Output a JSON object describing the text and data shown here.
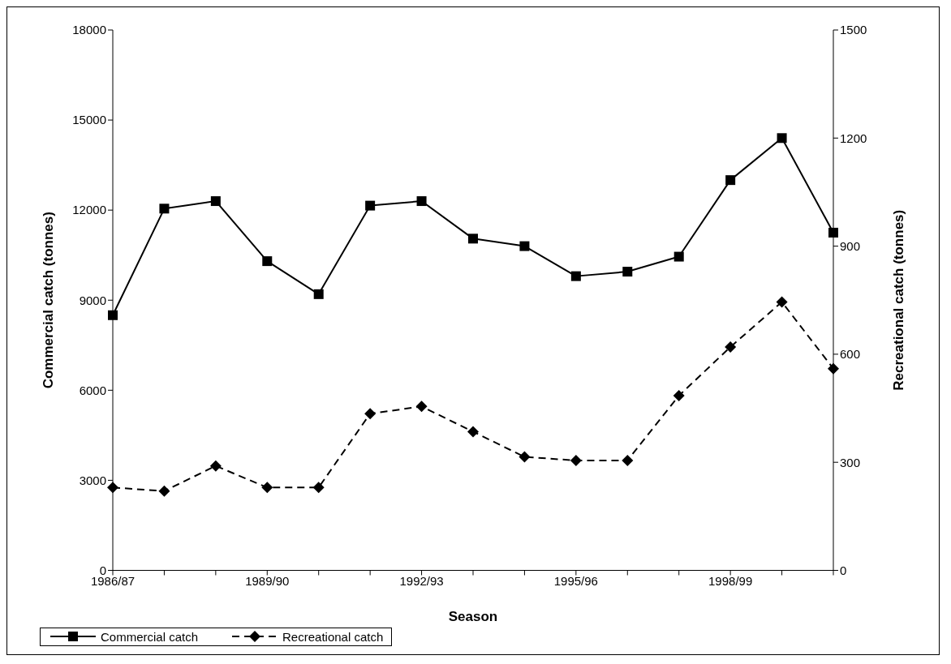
{
  "chart_data": {
    "type": "line",
    "xlabel": "Season",
    "ylabel": "Commercial catch (tonnes)",
    "y2label": "Recreational catch (tonnes)",
    "categories": [
      "1986/87",
      null,
      null,
      "1989/90",
      null,
      null,
      "1992/93",
      null,
      null,
      "1995/96",
      null,
      null,
      "1998/99",
      null,
      null
    ],
    "series": [
      {
        "name": "Commercial catch",
        "color": "#000000",
        "marker": "square",
        "line_style": "solid",
        "values": [
          8500,
          12050,
          12300,
          10300,
          9200,
          12150,
          12300,
          11050,
          10800,
          9800,
          9950,
          10450,
          13000,
          14400,
          11250
        ]
      },
      {
        "name": "Recreational catch",
        "color": "#000000",
        "marker": "diamond",
        "line_style": "dashed",
        "axis": "y2",
        "values": [
          230,
          220,
          290,
          230,
          230,
          435,
          455,
          385,
          315,
          305,
          305,
          485,
          620,
          745,
          560
        ]
      }
    ],
    "ylim": [
      0,
      18000
    ],
    "yticks": [
      0,
      3000,
      6000,
      9000,
      12000,
      15000,
      18000
    ],
    "y2lim": [
      0,
      1500
    ],
    "y2ticks": [
      0,
      300,
      600,
      900,
      1200,
      1500
    ],
    "grid": false,
    "legend": "bottom"
  }
}
